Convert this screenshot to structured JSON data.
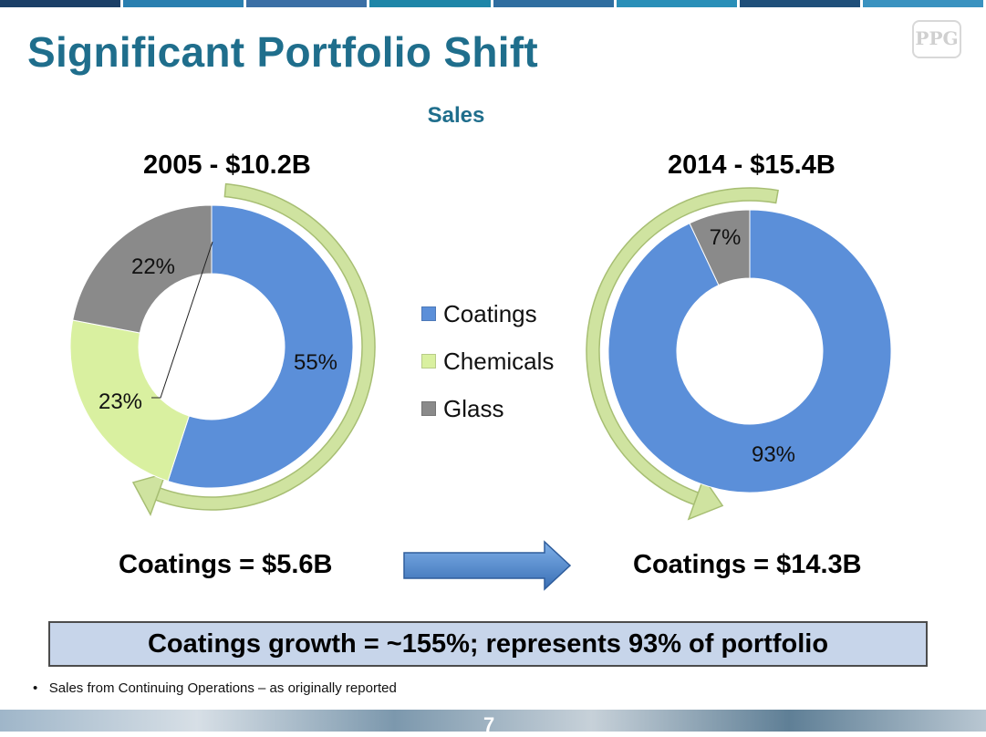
{
  "title": "Significant Portfolio Shift",
  "logo_text": "PPG",
  "subtitle": "Sales",
  "colors": {
    "title": "#1f6e8c",
    "coatings": "#5b8fd9",
    "chemicals": "#d9f0a0",
    "glass": "#8a8a8a",
    "arrow_ring": "#cfe3a0",
    "callout_bg": "#c7d5ea",
    "transition_arrow": "#4a7fc4"
  },
  "chart_data": [
    {
      "type": "pie",
      "style": "donut",
      "title": "2005 - $10.2B",
      "categories": [
        "Coatings",
        "Chemicals",
        "Glass"
      ],
      "values": [
        55,
        23,
        22
      ],
      "labels": [
        "55%",
        "23%",
        "22%"
      ]
    },
    {
      "type": "pie",
      "style": "donut",
      "title": "2014 - $15.4B",
      "categories": [
        "Coatings",
        "Glass"
      ],
      "values": [
        93,
        7
      ],
      "labels": [
        "93%",
        "7%"
      ]
    }
  ],
  "legend": [
    "Coatings",
    "Chemicals",
    "Glass"
  ],
  "coatings_2005": "Coatings = $5.6B",
  "coatings_2014": "Coatings = $14.3B",
  "callout": "Coatings growth = ~155%; represents 93% of portfolio",
  "footnote": "Sales from Continuing Operations – as originally reported",
  "page_number": "7"
}
